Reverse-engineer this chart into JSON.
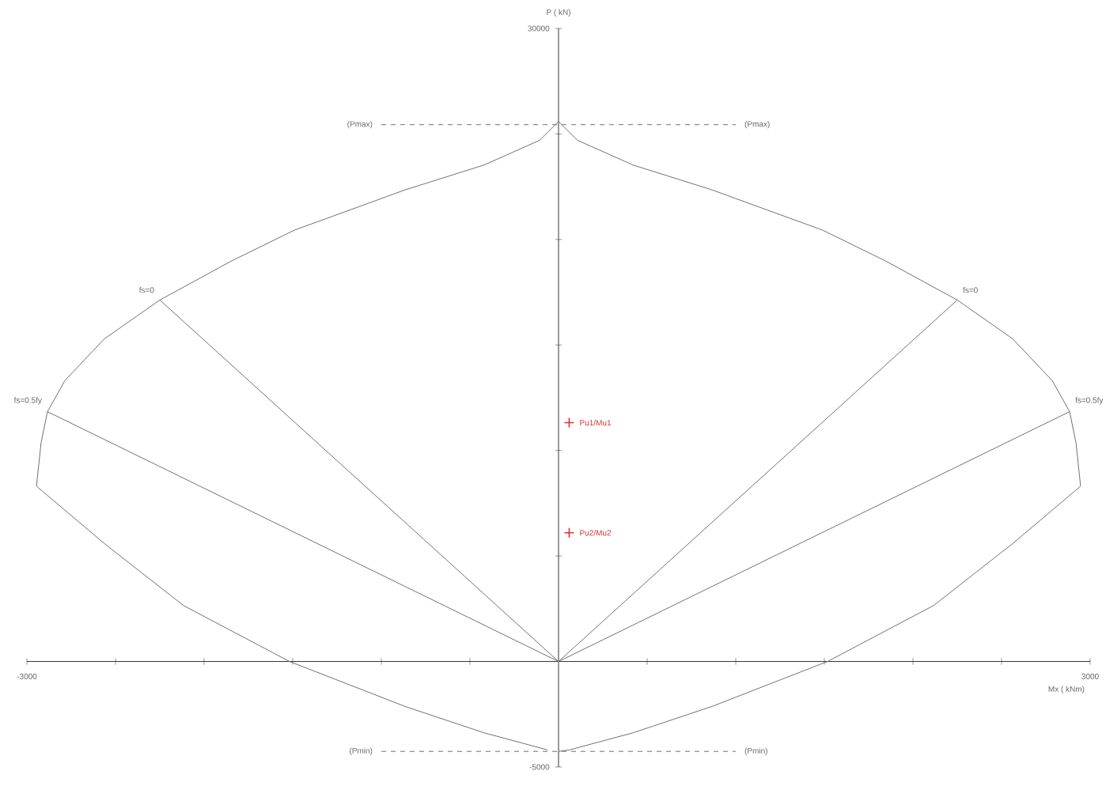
{
  "chart_data": {
    "type": "line",
    "xlabel": "Mx ( kNm)",
    "ylabel": "P ( kN)",
    "xlim": [
      -3000,
      3000
    ],
    "ylim": [
      -5000,
      30000
    ],
    "xticks": [
      -3000,
      {
        "value": -2500,
        "label": null
      },
      {
        "value": -2000,
        "label": null
      },
      {
        "value": -1500,
        "label": null
      },
      {
        "value": -1000,
        "label": null
      },
      {
        "value": -500,
        "label": null
      },
      {
        "value": 0,
        "label": null
      },
      {
        "value": 500,
        "label": null
      },
      {
        "value": 1000,
        "label": null
      },
      {
        "value": 1500,
        "label": null
      },
      {
        "value": 2000,
        "label": null
      },
      {
        "value": 2500,
        "label": null
      },
      3000
    ],
    "yticks": [
      -5000,
      {
        "value": 0,
        "label": null
      },
      {
        "value": 5000,
        "label": null
      },
      {
        "value": 10000,
        "label": null
      },
      {
        "value": 15000,
        "label": null
      },
      {
        "value": 20000,
        "label": null
      },
      {
        "value": 25000,
        "label": null
      },
      30000
    ],
    "grid": false,
    "series": [
      {
        "color": "#707070",
        "x": [
          0,
          62,
          420,
          866,
          1518,
          2116,
          2563,
          2946,
          2920,
          2884,
          2786,
          2563,
          2250,
          1848,
          1491,
          866,
          420,
          107,
          0,
          -107,
          -420,
          -866,
          -1491,
          -1848,
          -2250,
          -2563,
          -2786,
          -2884,
          -2920,
          -2946,
          -2563,
          -2116,
          -1518,
          -866,
          -420,
          -62
        ],
        "values": [
          -4260,
          -4190,
          -3380,
          -2130,
          0,
          2650,
          5590,
          8310,
          10370,
          11840,
          13310,
          15290,
          17130,
          18970,
          20440,
          22350,
          23530,
          24700,
          25590,
          24700,
          23530,
          22350,
          20440,
          18970,
          17130,
          15290,
          13310,
          11840,
          10370,
          8310,
          5590,
          2650,
          0,
          -2130,
          -3380,
          -4190
        ]
      },
      {
        "name": "fs=0",
        "color": "#707070",
        "x": [
          -2250,
          0,
          2250
        ],
        "values": [
          17130,
          0,
          17130
        ]
      },
      {
        "name": "fs=0.5fy",
        "color": "#707070",
        "x": [
          -2884,
          0,
          2884
        ],
        "values": [
          11840,
          0,
          11840
        ]
      },
      {
        "name": "(Pmax)",
        "color": "#707070",
        "line_style": "dashed",
        "x": [
          -1000,
          1000
        ],
        "values": [
          25440,
          25440
        ]
      },
      {
        "name": "(Pmin)",
        "color": "#707070",
        "line_style": "dashed",
        "x": [
          -1000,
          1000
        ],
        "values": [
          -4260,
          -4260
        ]
      },
      {
        "type": "scatter",
        "marker": "cross",
        "name": "Pu1/Mu1",
        "color": "#e03030",
        "x": [
          60
        ],
        "values": [
          11320
        ]
      },
      {
        "type": "scatter",
        "marker": "cross",
        "name": "Pu2/Mu2",
        "color": "#e03030",
        "x": [
          60
        ],
        "values": [
          6100
        ]
      }
    ]
  }
}
